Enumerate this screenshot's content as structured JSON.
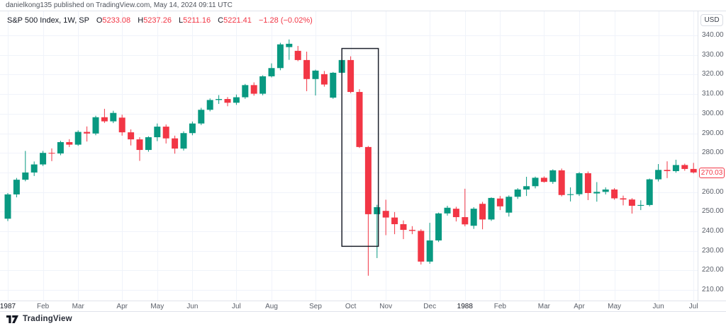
{
  "header": {
    "attribution": "danielkong135 published on TradingView.com, May 14, 2024 09:11 UTC",
    "legend": {
      "symbol": "S&P 500 Index, 1W, SP",
      "ohlc": [
        {
          "k": "O",
          "v": "5233.08"
        },
        {
          "k": "H",
          "v": "5237.26"
        },
        {
          "k": "L",
          "v": "5211.16"
        },
        {
          "k": "C",
          "v": "5221.41"
        }
      ],
      "change": "−1.28 (−0.02%)"
    }
  },
  "axis": {
    "currency_label": "USD",
    "last_price_label": "270.03",
    "price_ticks": [
      "340.00",
      "330.00",
      "320.00",
      "310.00",
      "300.00",
      "290.00",
      "280.00",
      "270.00",
      "260.00",
      "250.00",
      "240.00",
      "230.00",
      "220.00",
      "210.00"
    ],
    "time_labels": [
      {
        "i": 0,
        "t": "1987",
        "year": true
      },
      {
        "i": 4,
        "t": "Feb"
      },
      {
        "i": 8,
        "t": "Mar"
      },
      {
        "i": 13,
        "t": "Apr"
      },
      {
        "i": 17,
        "t": "May"
      },
      {
        "i": 21,
        "t": "Jun"
      },
      {
        "i": 26,
        "t": "Jul"
      },
      {
        "i": 30,
        "t": "Aug"
      },
      {
        "i": 35,
        "t": "Sep"
      },
      {
        "i": 39,
        "t": "Oct"
      },
      {
        "i": 43,
        "t": "Nov"
      },
      {
        "i": 48,
        "t": "Dec"
      },
      {
        "i": 52,
        "t": "1988",
        "year": true
      },
      {
        "i": 56,
        "t": "Feb"
      },
      {
        "i": 61,
        "t": "Mar"
      },
      {
        "i": 65,
        "t": "Apr"
      },
      {
        "i": 69,
        "t": "May"
      },
      {
        "i": 74,
        "t": "Jun"
      },
      {
        "i": 78,
        "t": "Jul"
      }
    ]
  },
  "footer": {
    "brand": "TradingView"
  },
  "colors": {
    "up": "#089981",
    "down": "#F23645",
    "grid": "#f0f3fa",
    "annotation": "#1e222d",
    "last_price": "#F23645",
    "axis_text": "#5a5f69"
  },
  "chart_data": {
    "type": "candlestick",
    "title": "S&P 500 Index, 1W, SP",
    "unit": "USD",
    "timeframe": "weekly, Jan 1987 - Jul 1988",
    "ylim": [
      205,
      351
    ],
    "grid": true,
    "columns": [
      "open",
      "high",
      "low",
      "close"
    ],
    "candles": [
      [
        246.4,
        259.5,
        245.2,
        258.8
      ],
      [
        258.8,
        267.2,
        257.3,
        266.3
      ],
      [
        266.3,
        281.0,
        265.5,
        270.0
      ],
      [
        270.0,
        275.6,
        268.2,
        274.1
      ],
      [
        274.1,
        281.0,
        273.3,
        280.0
      ],
      [
        280.0,
        282.3,
        275.8,
        279.7
      ],
      [
        279.7,
        286.2,
        278.8,
        285.5
      ],
      [
        285.5,
        287.0,
        283.0,
        284.2
      ],
      [
        284.2,
        291.5,
        283.6,
        290.7
      ],
      [
        290.7,
        293.5,
        285.8,
        289.9
      ],
      [
        289.9,
        299.0,
        289.0,
        298.2
      ],
      [
        298.2,
        302.5,
        295.3,
        296.1
      ],
      [
        296.1,
        301.5,
        295.2,
        300.4
      ],
      [
        298.0,
        299.5,
        288.8,
        290.5
      ],
      [
        290.5,
        292.0,
        283.8,
        286.9
      ],
      [
        286.9,
        288.0,
        275.9,
        281.5
      ],
      [
        281.5,
        288.5,
        280.6,
        288.0
      ],
      [
        288.0,
        295.0,
        286.0,
        293.4
      ],
      [
        293.4,
        294.5,
        284.8,
        287.4
      ],
      [
        287.4,
        288.8,
        279.6,
        282.2
      ],
      [
        282.2,
        291.0,
        281.2,
        290.1
      ],
      [
        290.1,
        296.0,
        289.0,
        295.0
      ],
      [
        295.0,
        303.0,
        294.2,
        302.0
      ],
      [
        302.0,
        307.8,
        301.2,
        307.0
      ],
      [
        307.0,
        309.5,
        305.0,
        307.5
      ],
      [
        307.5,
        308.5,
        303.8,
        305.6
      ],
      [
        305.6,
        309.8,
        304.5,
        308.4
      ],
      [
        308.4,
        315.2,
        307.6,
        314.6
      ],
      [
        314.6,
        316.0,
        309.2,
        310.2
      ],
      [
        310.2,
        319.6,
        309.4,
        319.1
      ],
      [
        319.1,
        325.7,
        318.5,
        323.3
      ],
      [
        323.3,
        336.2,
        322.2,
        335.4
      ],
      [
        334.0,
        337.9,
        327.5,
        335.7
      ],
      [
        332.1,
        334.6,
        326.8,
        327.4
      ],
      [
        327.4,
        331.7,
        311.5,
        317.7
      ],
      [
        317.7,
        322.5,
        309.3,
        322.0
      ],
      [
        320.2,
        321.8,
        313.8,
        314.9
      ],
      [
        308.2,
        321.3,
        307.6,
        320.9
      ],
      [
        320.9,
        328.3,
        319.9,
        327.4
      ],
      [
        327.4,
        329.3,
        310.5,
        311.1
      ],
      [
        311.1,
        312.5,
        282.5,
        283.0
      ],
      [
        283.0,
        283.5,
        217.3,
        248.7
      ],
      [
        248.7,
        253.5,
        226.3,
        252.3
      ],
      [
        250.4,
        256.1,
        238.0,
        247.0
      ],
      [
        247.0,
        249.8,
        238.5,
        243.6
      ],
      [
        243.6,
        245.5,
        236.0,
        240.7
      ],
      [
        240.7,
        242.6,
        238.5,
        240.2
      ],
      [
        240.2,
        241.0,
        223.0,
        224.5
      ],
      [
        224.5,
        244.3,
        223.4,
        235.3
      ],
      [
        235.3,
        249.5,
        234.5,
        249.1
      ],
      [
        249.1,
        253.0,
        248.0,
        252.0
      ],
      [
        251.5,
        252.5,
        245.0,
        247.2
      ],
      [
        247.2,
        261.7,
        242.5,
        243.5
      ],
      [
        242.8,
        252.3,
        241.2,
        251.5
      ],
      [
        254.0,
        255.0,
        241.0,
        246.0
      ],
      [
        246.0,
        257.3,
        245.3,
        257.0
      ],
      [
        256.7,
        258.0,
        250.8,
        252.7
      ],
      [
        249.5,
        258.3,
        247.5,
        257.6
      ],
      [
        257.6,
        262.0,
        256.5,
        261.3
      ],
      [
        261.3,
        267.8,
        258.0,
        263.0
      ],
      [
        263.0,
        267.9,
        261.9,
        267.3
      ],
      [
        267.3,
        268.0,
        264.8,
        265.2
      ],
      [
        265.2,
        271.6,
        264.2,
        271.1
      ],
      [
        271.1,
        272.0,
        257.8,
        258.5
      ],
      [
        258.5,
        262.4,
        255.2,
        258.9
      ],
      [
        258.9,
        270.2,
        258.0,
        269.6
      ],
      [
        269.6,
        270.5,
        255.9,
        259.5
      ],
      [
        259.3,
        265.1,
        255.1,
        260.1
      ],
      [
        260.1,
        262.4,
        258.8,
        261.3
      ],
      [
        261.3,
        262.0,
        256.1,
        256.8
      ],
      [
        256.8,
        258.2,
        253.2,
        256.2
      ],
      [
        256.2,
        256.9,
        249.0,
        253.0
      ],
      [
        253.0,
        255.8,
        250.8,
        253.4
      ],
      [
        253.4,
        266.9,
        252.7,
        266.5
      ],
      [
        266.5,
        274.3,
        265.4,
        271.3
      ],
      [
        271.3,
        275.7,
        267.1,
        270.7
      ],
      [
        270.7,
        276.5,
        269.9,
        273.8
      ],
      [
        273.8,
        274.5,
        270.9,
        271.8
      ],
      [
        271.8,
        274.9,
        269.5,
        270.03
      ]
    ],
    "annotation_rect": {
      "from_index": 38.0,
      "to_index": 42.15,
      "top_price": 333.3,
      "bottom_price": 232.3
    },
    "last_price": 270.03
  }
}
